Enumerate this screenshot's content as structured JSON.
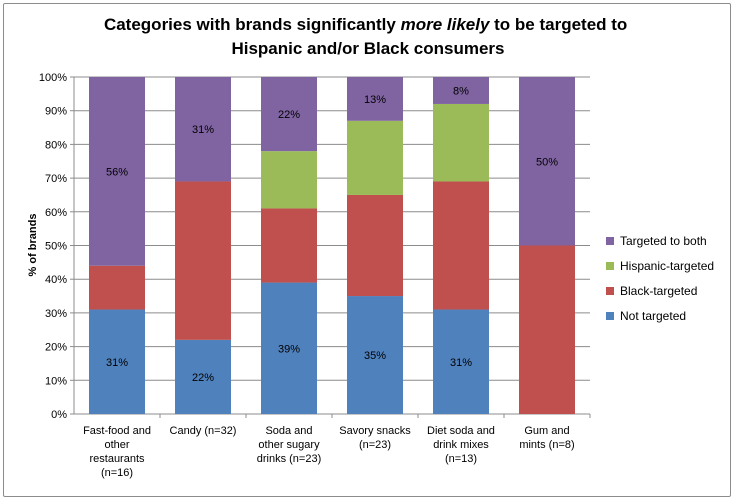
{
  "chart_data": {
    "type": "bar",
    "stacked": true,
    "title_parts": [
      {
        "line": 0,
        "text": "Categories with brands significantly ",
        "italic": false
      },
      {
        "line": 0,
        "text": "more likely",
        "italic": true
      },
      {
        "line": 0,
        "text": " to be targeted to",
        "italic": false
      },
      {
        "line": 1,
        "text": "Hispanic and/or Black consumers",
        "italic": false
      }
    ],
    "ylabel": "% of brands",
    "xlabel": "",
    "ylim": [
      0,
      100
    ],
    "yticks": [
      "0%",
      "10%",
      "20%",
      "30%",
      "40%",
      "50%",
      "60%",
      "70%",
      "80%",
      "90%",
      "100%"
    ],
    "grid": true,
    "legend_position": "right",
    "categories": [
      [
        "Fast-food and",
        "other",
        "restaurants",
        "(n=16)"
      ],
      [
        "Candy (n=32)"
      ],
      [
        "Soda and",
        "other sugary",
        "drinks (n=23)"
      ],
      [
        "Savory snacks",
        "(n=23)"
      ],
      [
        "Diet soda and",
        "drink mixes",
        "(n=13)"
      ],
      [
        "Gum and",
        "mints (n=8)"
      ]
    ],
    "series": [
      {
        "name": "Not targeted",
        "color": "#4f81bd",
        "values": [
          31,
          22,
          39,
          35,
          31,
          0
        ],
        "labels": [
          "31%",
          "22%",
          "39%",
          "35%",
          "31%",
          ""
        ]
      },
      {
        "name": "Black-targeted",
        "color": "#c0504d",
        "values": [
          13,
          47,
          22,
          30,
          38,
          50
        ],
        "labels": [
          "",
          "",
          "",
          "",
          "",
          ""
        ]
      },
      {
        "name": "Hispanic-targeted",
        "color": "#9bbb59",
        "values": [
          0,
          0,
          17,
          22,
          23,
          0
        ],
        "labels": [
          "",
          "",
          "",
          "",
          "",
          ""
        ]
      },
      {
        "name": "Targeted to both",
        "color": "#8064a2",
        "values": [
          56,
          31,
          22,
          13,
          8,
          50
        ],
        "labels": [
          "56%",
          "31%",
          "22%",
          "13%",
          "8%",
          "50%"
        ]
      }
    ],
    "legend_order": [
      3,
      2,
      1,
      0
    ]
  }
}
